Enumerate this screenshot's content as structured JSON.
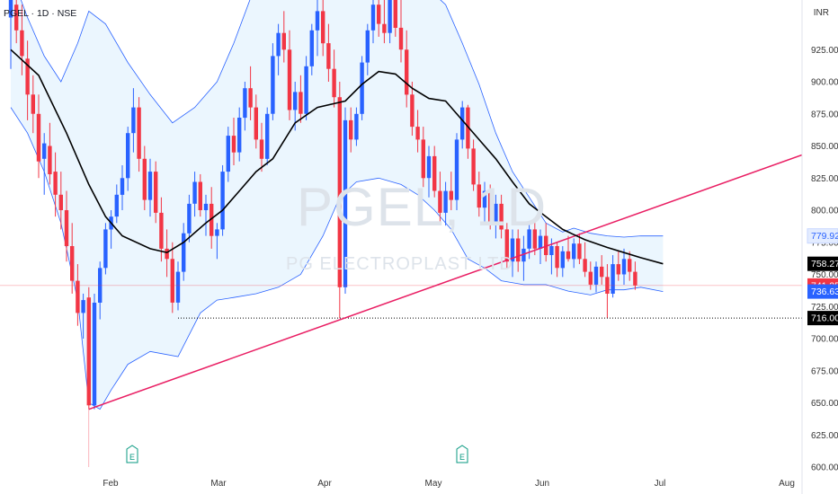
{
  "header": {
    "symbol_line": "PGEL · 1D · NSE",
    "currency": "INR"
  },
  "watermark": {
    "ticker": "PGEL, 1D",
    "company": "PG ELECTROPLAST LTD"
  },
  "chart_data": {
    "type": "candlestick",
    "title": "PGEL · 1D · NSE",
    "y_axis": {
      "unit": "INR",
      "ylim": [
        600,
        975
      ],
      "ticks": [
        600,
        625,
        650,
        675,
        700,
        725,
        750,
        775,
        800,
        825,
        850,
        875,
        900,
        925
      ]
    },
    "x_axis": {
      "ticks": [
        "Feb",
        "Mar",
        "Apr",
        "May",
        "Jun",
        "Jul",
        "Aug"
      ]
    },
    "price_labels": [
      {
        "name": "upper-band",
        "value": "779.92",
        "color": "#2962ff"
      },
      {
        "name": "moving-average",
        "value": "758.27",
        "color": "#000000"
      },
      {
        "name": "last-close",
        "value": "741.35",
        "color": "#f23645"
      },
      {
        "name": "lower-band",
        "value": "736.63",
        "color": "#2962ff"
      },
      {
        "name": "support",
        "value": "716.00",
        "color": "#000000"
      }
    ],
    "earnings_markers": [
      {
        "label": "E"
      },
      {
        "label": "E"
      }
    ],
    "levels": [
      {
        "name": "support-line",
        "value": 716
      },
      {
        "name": "last-price-line",
        "value": 741.35
      }
    ],
    "trendline": {
      "from_price": 645,
      "to_price": 843,
      "color": "#e91e63"
    },
    "colors": {
      "up": "#2962ff",
      "down": "#f23645",
      "band_fill": "#e3f2fd",
      "band_line": "#2962ff",
      "ma": "#000000"
    },
    "candles": [
      {
        "o": 950,
        "h": 975,
        "l": 910,
        "c": 965
      },
      {
        "o": 960,
        "h": 972,
        "l": 930,
        "c": 940
      },
      {
        "o": 940,
        "h": 960,
        "l": 905,
        "c": 920
      },
      {
        "o": 918,
        "h": 932,
        "l": 870,
        "c": 890
      },
      {
        "o": 890,
        "h": 905,
        "l": 860,
        "c": 875
      },
      {
        "o": 875,
        "h": 890,
        "l": 825,
        "c": 838
      },
      {
        "o": 840,
        "h": 860,
        "l": 812,
        "c": 852
      },
      {
        "o": 850,
        "h": 868,
        "l": 820,
        "c": 828
      },
      {
        "o": 830,
        "h": 845,
        "l": 795,
        "c": 812
      },
      {
        "o": 812,
        "h": 830,
        "l": 785,
        "c": 800
      },
      {
        "o": 800,
        "h": 815,
        "l": 760,
        "c": 772
      },
      {
        "o": 772,
        "h": 790,
        "l": 735,
        "c": 745
      },
      {
        "o": 745,
        "h": 758,
        "l": 710,
        "c": 720
      },
      {
        "o": 720,
        "h": 735,
        "l": 700,
        "c": 730
      },
      {
        "o": 732,
        "h": 740,
        "l": 645,
        "c": 648
      },
      {
        "o": 648,
        "h": 735,
        "l": 645,
        "c": 728
      },
      {
        "o": 728,
        "h": 760,
        "l": 715,
        "c": 755
      },
      {
        "o": 755,
        "h": 790,
        "l": 750,
        "c": 785
      },
      {
        "o": 785,
        "h": 800,
        "l": 770,
        "c": 795
      },
      {
        "o": 795,
        "h": 820,
        "l": 790,
        "c": 812
      },
      {
        "o": 812,
        "h": 835,
        "l": 800,
        "c": 825
      },
      {
        "o": 825,
        "h": 865,
        "l": 815,
        "c": 860
      },
      {
        "o": 860,
        "h": 895,
        "l": 845,
        "c": 880
      },
      {
        "o": 880,
        "h": 888,
        "l": 830,
        "c": 840
      },
      {
        "o": 840,
        "h": 850,
        "l": 800,
        "c": 808
      },
      {
        "o": 808,
        "h": 840,
        "l": 795,
        "c": 830
      },
      {
        "o": 830,
        "h": 838,
        "l": 790,
        "c": 798
      },
      {
        "o": 798,
        "h": 810,
        "l": 760,
        "c": 770
      },
      {
        "o": 770,
        "h": 785,
        "l": 748,
        "c": 762
      },
      {
        "o": 762,
        "h": 775,
        "l": 720,
        "c": 728
      },
      {
        "o": 728,
        "h": 760,
        "l": 722,
        "c": 752
      },
      {
        "o": 752,
        "h": 790,
        "l": 745,
        "c": 782
      },
      {
        "o": 782,
        "h": 812,
        "l": 775,
        "c": 805
      },
      {
        "o": 805,
        "h": 830,
        "l": 795,
        "c": 822
      },
      {
        "o": 822,
        "h": 828,
        "l": 795,
        "c": 800
      },
      {
        "o": 800,
        "h": 812,
        "l": 780,
        "c": 805
      },
      {
        "o": 805,
        "h": 818,
        "l": 770,
        "c": 780
      },
      {
        "o": 780,
        "h": 790,
        "l": 762,
        "c": 785
      },
      {
        "o": 785,
        "h": 835,
        "l": 780,
        "c": 830
      },
      {
        "o": 830,
        "h": 865,
        "l": 822,
        "c": 858
      },
      {
        "o": 858,
        "h": 872,
        "l": 835,
        "c": 845
      },
      {
        "o": 845,
        "h": 880,
        "l": 838,
        "c": 872
      },
      {
        "o": 872,
        "h": 900,
        "l": 862,
        "c": 895
      },
      {
        "o": 895,
        "h": 912,
        "l": 870,
        "c": 880
      },
      {
        "o": 880,
        "h": 890,
        "l": 848,
        "c": 855
      },
      {
        "o": 855,
        "h": 868,
        "l": 830,
        "c": 840
      },
      {
        "o": 840,
        "h": 880,
        "l": 835,
        "c": 875
      },
      {
        "o": 875,
        "h": 930,
        "l": 870,
        "c": 920
      },
      {
        "o": 920,
        "h": 945,
        "l": 905,
        "c": 938
      },
      {
        "o": 938,
        "h": 955,
        "l": 915,
        "c": 925
      },
      {
        "o": 925,
        "h": 940,
        "l": 870,
        "c": 878
      },
      {
        "o": 878,
        "h": 900,
        "l": 862,
        "c": 892
      },
      {
        "o": 892,
        "h": 905,
        "l": 868,
        "c": 875
      },
      {
        "o": 875,
        "h": 920,
        "l": 870,
        "c": 912
      },
      {
        "o": 912,
        "h": 945,
        "l": 905,
        "c": 940
      },
      {
        "o": 940,
        "h": 965,
        "l": 920,
        "c": 955
      },
      {
        "o": 955,
        "h": 968,
        "l": 920,
        "c": 930
      },
      {
        "o": 930,
        "h": 945,
        "l": 900,
        "c": 910
      },
      {
        "o": 910,
        "h": 925,
        "l": 880,
        "c": 888
      },
      {
        "o": 888,
        "h": 900,
        "l": 716,
        "c": 740
      },
      {
        "o": 740,
        "h": 880,
        "l": 735,
        "c": 870
      },
      {
        "o": 870,
        "h": 880,
        "l": 845,
        "c": 855
      },
      {
        "o": 855,
        "h": 880,
        "l": 850,
        "c": 875
      },
      {
        "o": 875,
        "h": 920,
        "l": 870,
        "c": 915
      },
      {
        "o": 915,
        "h": 945,
        "l": 905,
        "c": 940
      },
      {
        "o": 940,
        "h": 965,
        "l": 930,
        "c": 960
      },
      {
        "o": 960,
        "h": 975,
        "l": 935,
        "c": 945
      },
      {
        "o": 945,
        "h": 970,
        "l": 930,
        "c": 938
      },
      {
        "o": 938,
        "h": 975,
        "l": 930,
        "c": 968
      },
      {
        "o": 968,
        "h": 975,
        "l": 935,
        "c": 942
      },
      {
        "o": 942,
        "h": 965,
        "l": 915,
        "c": 925
      },
      {
        "o": 925,
        "h": 940,
        "l": 880,
        "c": 890
      },
      {
        "o": 890,
        "h": 900,
        "l": 858,
        "c": 865
      },
      {
        "o": 865,
        "h": 878,
        "l": 845,
        "c": 855
      },
      {
        "o": 855,
        "h": 865,
        "l": 818,
        "c": 825
      },
      {
        "o": 825,
        "h": 850,
        "l": 810,
        "c": 842
      },
      {
        "o": 842,
        "h": 850,
        "l": 810,
        "c": 815
      },
      {
        "o": 815,
        "h": 830,
        "l": 790,
        "c": 798
      },
      {
        "o": 798,
        "h": 822,
        "l": 788,
        "c": 815
      },
      {
        "o": 815,
        "h": 830,
        "l": 800,
        "c": 808
      },
      {
        "o": 808,
        "h": 860,
        "l": 800,
        "c": 855
      },
      {
        "o": 855,
        "h": 885,
        "l": 848,
        "c": 880
      },
      {
        "o": 880,
        "h": 882,
        "l": 840,
        "c": 848
      },
      {
        "o": 848,
        "h": 855,
        "l": 815,
        "c": 820
      },
      {
        "o": 820,
        "h": 830,
        "l": 795,
        "c": 802
      },
      {
        "o": 802,
        "h": 822,
        "l": 790,
        "c": 815
      },
      {
        "o": 815,
        "h": 820,
        "l": 785,
        "c": 790
      },
      {
        "o": 790,
        "h": 812,
        "l": 778,
        "c": 805
      },
      {
        "o": 805,
        "h": 812,
        "l": 778,
        "c": 785
      },
      {
        "o": 785,
        "h": 790,
        "l": 755,
        "c": 760
      },
      {
        "o": 760,
        "h": 785,
        "l": 748,
        "c": 778
      },
      {
        "o": 778,
        "h": 785,
        "l": 752,
        "c": 760
      },
      {
        "o": 760,
        "h": 780,
        "l": 745,
        "c": 770
      },
      {
        "o": 770,
        "h": 790,
        "l": 762,
        "c": 785
      },
      {
        "o": 785,
        "h": 792,
        "l": 765,
        "c": 770
      },
      {
        "o": 770,
        "h": 785,
        "l": 758,
        "c": 780
      },
      {
        "o": 780,
        "h": 790,
        "l": 760,
        "c": 765
      },
      {
        "o": 765,
        "h": 778,
        "l": 750,
        "c": 772
      },
      {
        "o": 772,
        "h": 775,
        "l": 748,
        "c": 755
      },
      {
        "o": 755,
        "h": 772,
        "l": 748,
        "c": 768
      },
      {
        "o": 768,
        "h": 780,
        "l": 760,
        "c": 762
      },
      {
        "o": 762,
        "h": 778,
        "l": 755,
        "c": 774
      },
      {
        "o": 774,
        "h": 782,
        "l": 758,
        "c": 762
      },
      {
        "o": 762,
        "h": 775,
        "l": 748,
        "c": 752
      },
      {
        "o": 752,
        "h": 760,
        "l": 738,
        "c": 742
      },
      {
        "o": 742,
        "h": 760,
        "l": 736,
        "c": 756
      },
      {
        "o": 756,
        "h": 765,
        "l": 742,
        "c": 748
      },
      {
        "o": 748,
        "h": 758,
        "l": 716,
        "c": 735
      },
      {
        "o": 735,
        "h": 765,
        "l": 732,
        "c": 758
      },
      {
        "o": 758,
        "h": 768,
        "l": 745,
        "c": 750
      },
      {
        "o": 750,
        "h": 770,
        "l": 742,
        "c": 762
      },
      {
        "o": 762,
        "h": 768,
        "l": 745,
        "c": 752
      },
      {
        "o": 752,
        "h": 760,
        "l": 738,
        "c": 741.35
      }
    ],
    "ma_line": [
      [
        0,
        925
      ],
      [
        5,
        905
      ],
      [
        10,
        860
      ],
      [
        14,
        820
      ],
      [
        17,
        795
      ],
      [
        20,
        780
      ],
      [
        25,
        770
      ],
      [
        28,
        767
      ],
      [
        31,
        775
      ],
      [
        35,
        790
      ],
      [
        38,
        800
      ],
      [
        41,
        815
      ],
      [
        44,
        830
      ],
      [
        47,
        840
      ],
      [
        51,
        868
      ],
      [
        55,
        880
      ],
      [
        60,
        885
      ],
      [
        63,
        898
      ],
      [
        66,
        908
      ],
      [
        69,
        906
      ],
      [
        72,
        895
      ],
      [
        75,
        887
      ],
      [
        78,
        885
      ],
      [
        81,
        870
      ],
      [
        84,
        855
      ],
      [
        87,
        840
      ],
      [
        90,
        822
      ],
      [
        93,
        805
      ],
      [
        96,
        795
      ],
      [
        99,
        785
      ],
      [
        101,
        781
      ],
      [
        103,
        777
      ],
      [
        107,
        771
      ],
      [
        110,
        767
      ],
      [
        113,
        763
      ],
      [
        117,
        758.27
      ]
    ],
    "upper_band": [
      [
        0,
        985
      ],
      [
        3,
        950
      ],
      [
        6,
        920
      ],
      [
        9,
        900
      ],
      [
        12,
        930
      ],
      [
        14,
        955
      ],
      [
        17,
        945
      ],
      [
        21,
        915
      ],
      [
        25,
        890
      ],
      [
        29,
        868
      ],
      [
        33,
        880
      ],
      [
        37,
        900
      ],
      [
        40,
        930
      ],
      [
        43,
        965
      ],
      [
        47,
        980
      ],
      [
        51,
        985
      ],
      [
        55,
        983
      ],
      [
        59,
        975
      ],
      [
        62,
        980
      ],
      [
        65,
        985
      ],
      [
        68,
        980
      ],
      [
        72,
        975
      ],
      [
        75,
        972
      ],
      [
        78,
        960
      ],
      [
        81,
        930
      ],
      [
        84,
        898
      ],
      [
        87,
        860
      ],
      [
        90,
        830
      ],
      [
        93,
        810
      ],
      [
        96,
        790
      ],
      [
        99,
        783
      ],
      [
        101,
        786
      ],
      [
        104,
        782
      ],
      [
        107,
        780
      ],
      [
        110,
        779
      ],
      [
        113,
        780
      ],
      [
        117,
        779.92
      ]
    ],
    "lower_band": [
      [
        0,
        880
      ],
      [
        3,
        860
      ],
      [
        6,
        830
      ],
      [
        9,
        790
      ],
      [
        12,
        730
      ],
      [
        14,
        650
      ],
      [
        16,
        645
      ],
      [
        18,
        660
      ],
      [
        21,
        680
      ],
      [
        25,
        690
      ],
      [
        30,
        686
      ],
      [
        34,
        720
      ],
      [
        37,
        730
      ],
      [
        40,
        732
      ],
      [
        44,
        735
      ],
      [
        48,
        740
      ],
      [
        52,
        750
      ],
      [
        56,
        780
      ],
      [
        59,
        810
      ],
      [
        62,
        822
      ],
      [
        66,
        825
      ],
      [
        70,
        820
      ],
      [
        73,
        812
      ],
      [
        76,
        800
      ],
      [
        79,
        785
      ],
      [
        82,
        762
      ],
      [
        85,
        755
      ],
      [
        88,
        745
      ],
      [
        92,
        742
      ],
      [
        96,
        742
      ],
      [
        100,
        737
      ],
      [
        104,
        734
      ],
      [
        107,
        738
      ],
      [
        110,
        738
      ],
      [
        113,
        740
      ],
      [
        117,
        736.63
      ]
    ]
  }
}
